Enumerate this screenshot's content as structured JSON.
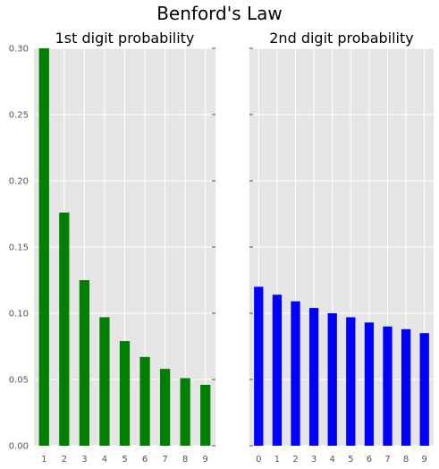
{
  "title": "Benford's Law",
  "colors": {
    "panel_bg": "#e5e5e5",
    "grid": "#ffffff",
    "left_bar": "#008000",
    "right_bar": "#0000ff"
  },
  "chart_data": [
    {
      "type": "bar",
      "title": "1st digit probability",
      "categories": [
        "1",
        "2",
        "3",
        "4",
        "5",
        "6",
        "7",
        "8",
        "9"
      ],
      "values": [
        0.301,
        0.176,
        0.125,
        0.097,
        0.079,
        0.067,
        0.058,
        0.051,
        0.046
      ],
      "ylim": [
        0,
        0.3
      ],
      "yticks": [
        "0.00",
        "0.05",
        "0.10",
        "0.15",
        "0.20",
        "0.25",
        "0.30"
      ],
      "color": "#008000",
      "grid": true
    },
    {
      "type": "bar",
      "title": "2nd digit probability",
      "categories": [
        "0",
        "1",
        "2",
        "3",
        "4",
        "5",
        "6",
        "7",
        "8",
        "9"
      ],
      "values": [
        0.12,
        0.114,
        0.109,
        0.104,
        0.1,
        0.097,
        0.093,
        0.09,
        0.088,
        0.085
      ],
      "ylim": [
        0,
        0.3
      ],
      "color": "#0000ff",
      "grid": true,
      "sharey": true
    }
  ]
}
